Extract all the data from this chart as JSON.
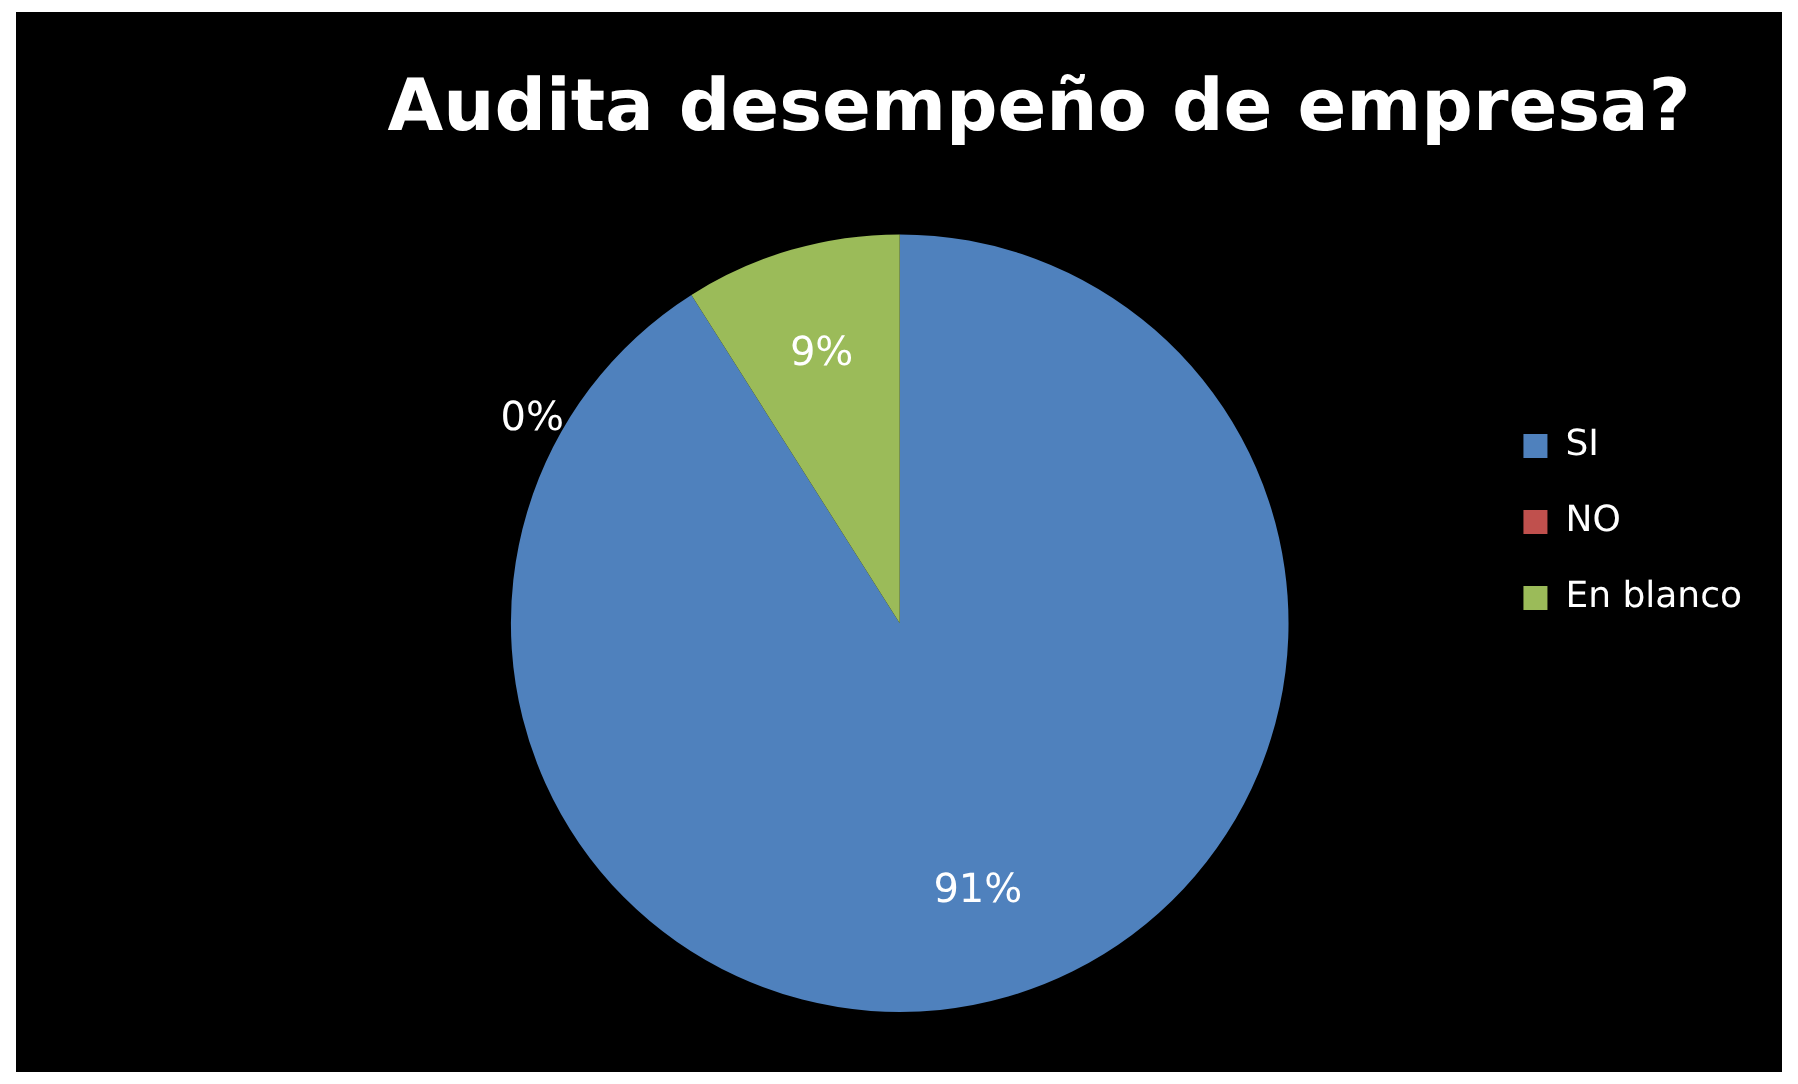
{
  "chart_data": {
    "type": "pie",
    "title": "Audita desempeño de empresa?",
    "categories": [
      "SI",
      "NO",
      "En blanco"
    ],
    "values": [
      91,
      0,
      9
    ],
    "colors": [
      "#4f81bd",
      "#c0504d",
      "#9bbb59"
    ],
    "value_labels": [
      "91%",
      "0%",
      "9%"
    ],
    "legend": "right"
  }
}
